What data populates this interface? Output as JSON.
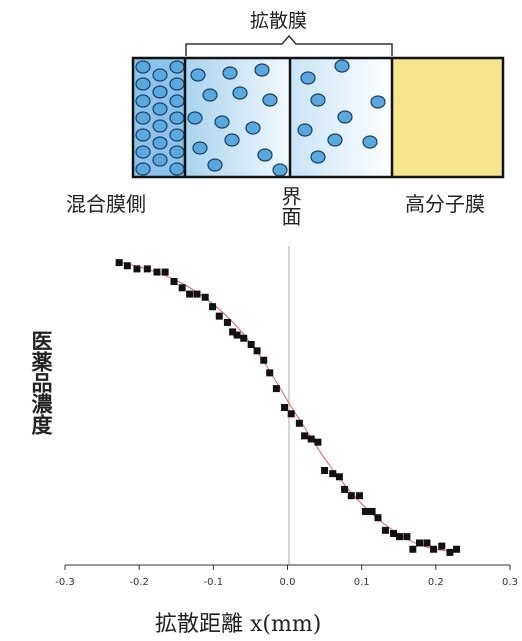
{
  "diagram": {
    "membrane_title": "拡散膜",
    "left_label": "混合膜側",
    "interface_label": "界面",
    "right_label": "高分子膜"
  },
  "chart_data": {
    "type": "scatter",
    "xlabel": "拡散距離 x(mm)",
    "ylabel": "医薬品濃度",
    "color": "#111111",
    "x": [
      -0.227,
      -0.216,
      -0.203,
      -0.189,
      -0.176,
      -0.165,
      -0.153,
      -0.142,
      -0.132,
      -0.122,
      -0.111,
      -0.101,
      -0.092,
      -0.081,
      -0.074,
      -0.068,
      -0.059,
      -0.049,
      -0.041,
      -0.032,
      -0.024,
      -0.015,
      -0.004,
      0.005,
      0.016,
      0.023,
      0.032,
      0.041,
      0.05,
      0.061,
      0.07,
      0.077,
      0.086,
      0.097,
      0.105,
      0.114,
      0.122,
      0.132,
      0.143,
      0.151,
      0.161,
      0.169,
      0.178,
      0.188,
      0.197,
      0.208,
      0.219,
      0.228
    ],
    "values": [
      0.96,
      0.95,
      0.94,
      0.94,
      0.93,
      0.93,
      0.9,
      0.88,
      0.86,
      0.86,
      0.85,
      0.82,
      0.79,
      0.77,
      0.74,
      0.73,
      0.72,
      0.7,
      0.68,
      0.65,
      0.61,
      0.56,
      0.5,
      0.48,
      0.45,
      0.41,
      0.4,
      0.39,
      0.3,
      0.29,
      0.28,
      0.24,
      0.22,
      0.22,
      0.17,
      0.17,
      0.15,
      0.11,
      0.1,
      0.09,
      0.09,
      0.05,
      0.07,
      0.07,
      0.05,
      0.06,
      0.04,
      0.05
    ],
    "xlim": [
      -0.3,
      0.3
    ],
    "ylim": [
      0,
      1
    ],
    "xticks": [
      -0.3,
      -0.2,
      -0.1,
      {
        "value": 0,
        "label": "0.0"
      },
      0.1,
      0.2,
      0.3
    ]
  }
}
